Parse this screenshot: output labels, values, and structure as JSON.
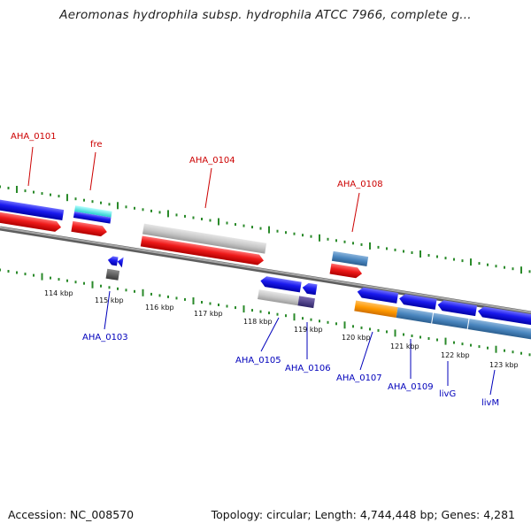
{
  "title": "Aeromonas hydrophila subsp. hydrophila ATCC 7966, complete g...",
  "footer": {
    "accession": "Accession: NC_008570",
    "summary": "Topology: circular; Length: 4,744,448 bp; Genes: 4,281"
  },
  "scale_labels": [
    "114 kbp",
    "115 kbp",
    "116 kbp",
    "117 kbp",
    "118 kbp",
    "119 kbp",
    "120 kbp",
    "121 kbp",
    "122 kbp",
    "123 kbp"
  ],
  "colors": {
    "forward_label": "#cc0000",
    "reverse_label": "#0000bb",
    "backbone": "#808080",
    "tick": "#2a8a2a"
  },
  "forward_labels": [
    "AHA_0101",
    "fre",
    "AHA_0104",
    "AHA_0108"
  ],
  "reverse_labels": [
    "AHA_0103",
    "AHA_0105",
    "AHA_0106",
    "AHA_0107",
    "AHA_0109",
    "livG",
    "livM"
  ]
}
